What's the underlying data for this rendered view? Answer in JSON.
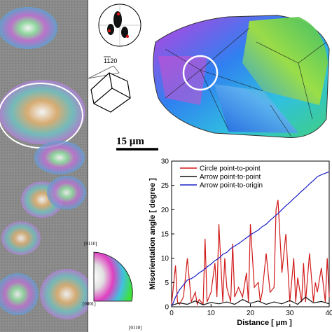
{
  "figure": {
    "scale_bar_label": "15 µm",
    "pole_figure_label": "1120",
    "ipf_labels": {
      "top": "[0110]",
      "left": "[0001]",
      "bottom": "[0110]"
    }
  },
  "chart_data": {
    "type": "line",
    "xlabel": "Distance [ µm ]",
    "ylabel": "Misorientation angle [ degree ]",
    "xlim": [
      0,
      40
    ],
    "ylim": [
      0,
      30
    ],
    "xticks": [
      0,
      10,
      20,
      30,
      40
    ],
    "yticks": [
      0,
      5,
      10,
      15,
      20,
      25,
      30
    ],
    "legend_position": "top-left",
    "series": [
      {
        "name": "Circle point-to-point",
        "color": "#d11a1a",
        "x": [
          0,
          1,
          1.5,
          2,
          3,
          4,
          5,
          6,
          6.5,
          7,
          8,
          8.5,
          9,
          10,
          11,
          11.5,
          12,
          13,
          13.5,
          14,
          15,
          15.5,
          16,
          17,
          18,
          19,
          19.5,
          20,
          21,
          22,
          22.5,
          23,
          24,
          25,
          26,
          26.5,
          27,
          28,
          29,
          30,
          31,
          31.5,
          32,
          33,
          33.5,
          34,
          35,
          36,
          36.5,
          37,
          38,
          39,
          39.5,
          40
        ],
        "y": [
          0.5,
          8.5,
          1,
          0.5,
          2,
          10,
          1,
          3,
          0.5,
          1.5,
          0.5,
          14,
          1,
          3,
          9,
          2,
          17,
          1,
          10,
          4,
          1,
          13,
          2,
          4,
          2,
          7,
          1,
          17,
          4,
          5,
          1,
          3,
          11,
          3,
          4,
          20,
          22,
          7,
          15,
          1,
          10,
          1,
          6,
          1,
          9,
          1,
          11,
          1,
          5,
          3,
          8,
          1,
          10,
          2
        ]
      },
      {
        "name": "Arrow point-to-point",
        "color": "#111111",
        "x": [
          0,
          2,
          4,
          6,
          8,
          10,
          12,
          14,
          16,
          18,
          20,
          22,
          24,
          26,
          28,
          30,
          32,
          34,
          36,
          38,
          40
        ],
        "y": [
          0.3,
          0.8,
          0.5,
          1.2,
          0.4,
          0.9,
          0.6,
          1.0,
          0.5,
          1.5,
          0.7,
          1.2,
          0.5,
          1.0,
          0.6,
          1.3,
          0.5,
          2.0,
          0.8,
          1.1,
          0.6
        ]
      },
      {
        "name": "Arrow point-to-origin",
        "color": "#1a22c8",
        "x": [
          0,
          1,
          2,
          3,
          4,
          5,
          6,
          7,
          8,
          9,
          10,
          11,
          12,
          13,
          14,
          15,
          16,
          17,
          18,
          19,
          20,
          21,
          22,
          23,
          24,
          25,
          26,
          27,
          28,
          29,
          30,
          31,
          32,
          33,
          34,
          35,
          36,
          37,
          38,
          39,
          40
        ],
        "y": [
          0,
          2,
          3.5,
          4.5,
          5.5,
          5.8,
          6.3,
          7,
          7.5,
          8.2,
          8.8,
          9.5,
          10,
          10.8,
          11.2,
          12,
          12.5,
          13,
          13.6,
          14.2,
          14.8,
          15.3,
          15.8,
          16.5,
          17,
          17.8,
          18.5,
          19.2,
          20,
          20.8,
          21.5,
          22.3,
          23,
          23.8,
          24.5,
          25.3,
          26,
          26.8,
          27.2,
          27.5,
          27.8
        ]
      }
    ]
  }
}
